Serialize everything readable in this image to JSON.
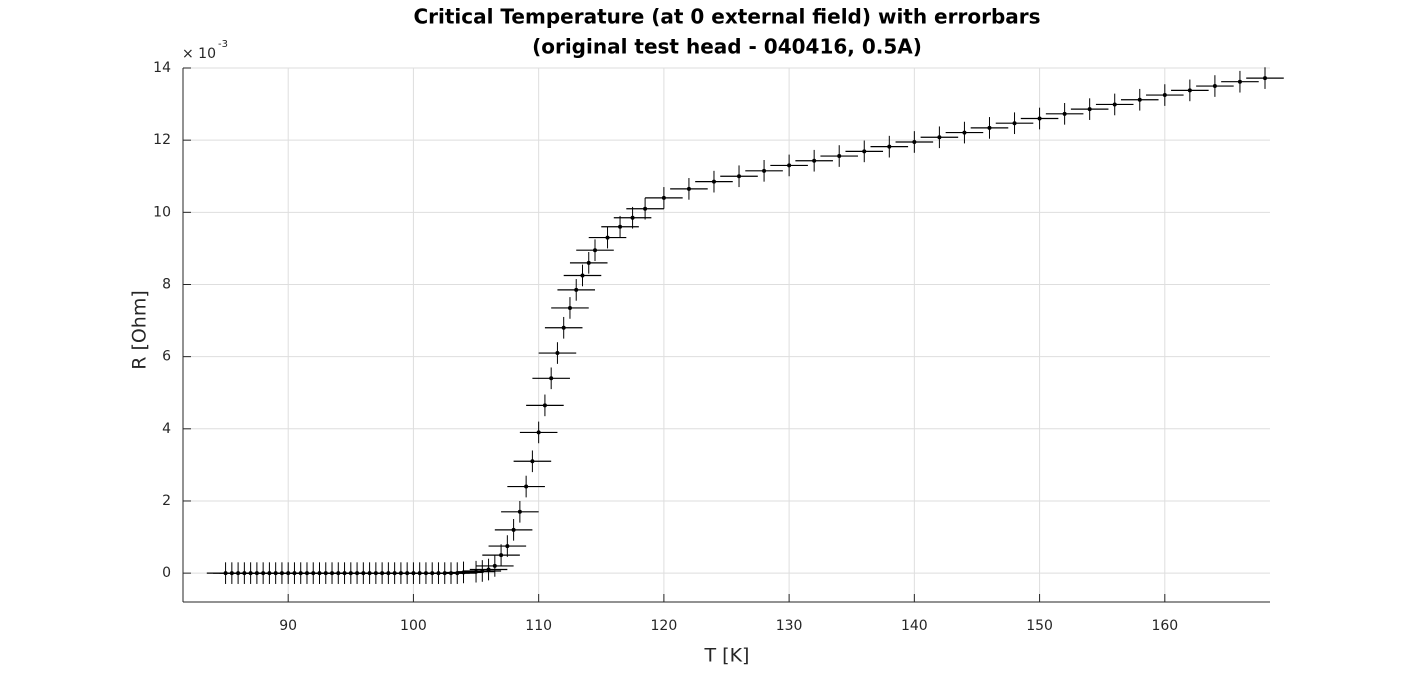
{
  "chart_data": {
    "type": "errorbar-scatter",
    "title": "Critical Temperature (at 0 external field) with errorbars",
    "subtitle": "(original test head - 040416, 0.5A)",
    "x_label": "T [K]",
    "y_label": "R [Ohm]",
    "y_multiplier_base": "× 10",
    "y_multiplier_exponent": "-3",
    "xlim": [
      81.6,
      168.4
    ],
    "ylim": [
      -0.8,
      14
    ],
    "xticks": [
      90,
      100,
      110,
      120,
      130,
      140,
      150,
      160
    ],
    "yticks": [
      0,
      2,
      4,
      6,
      8,
      10,
      12,
      14
    ],
    "grid": true,
    "color": "#000000",
    "xerr": 1.5,
    "yerr": 0.3,
    "series": [
      {
        "x": [
          85,
          85.5,
          86,
          86.5,
          87,
          87.5,
          88,
          88.5,
          89,
          89.5,
          90,
          90.5,
          91,
          91.5,
          92,
          92.5,
          93,
          93.5,
          94,
          94.5,
          95,
          95.5,
          96,
          96.5,
          97,
          97.5,
          98,
          98.5,
          99,
          99.5,
          100,
          100.5,
          101,
          101.5,
          102,
          102.5,
          103,
          103.5,
          104,
          105,
          105.5,
          106,
          106.5,
          107,
          107.5,
          108,
          108.5,
          109,
          109.5,
          110,
          110.5,
          111,
          111.5,
          112,
          112.5,
          113,
          113.5,
          114,
          114.5,
          115.5,
          116.5,
          117.5,
          118.5,
          120,
          122,
          124,
          126,
          128,
          130,
          132,
          134,
          136,
          138,
          140,
          142,
          144,
          146,
          148,
          150,
          152,
          154,
          156,
          158,
          160,
          162,
          164,
          166,
          168
        ],
        "y": [
          0,
          0,
          0,
          0,
          0,
          0,
          0,
          0,
          0,
          0,
          0,
          0,
          0,
          0,
          0,
          0,
          0,
          0,
          0,
          0,
          0,
          0,
          0,
          0,
          0,
          0,
          0,
          0,
          0,
          0,
          0,
          0,
          0,
          0,
          0,
          0,
          0,
          0,
          0.02,
          0.04,
          0.06,
          0.1,
          0.2,
          0.5,
          0.75,
          1.2,
          1.7,
          2.4,
          3.1,
          3.9,
          4.65,
          5.4,
          6.1,
          6.8,
          7.35,
          7.85,
          8.25,
          8.6,
          8.95,
          9.3,
          9.6,
          9.85,
          10.1,
          10.4,
          10.65,
          10.85,
          11.0,
          11.15,
          11.3,
          11.43,
          11.56,
          11.69,
          11.82,
          11.95,
          12.08,
          12.21,
          12.34,
          12.47,
          12.6,
          12.73,
          12.86,
          12.99,
          13.12,
          13.25,
          13.38,
          13.5,
          13.62,
          13.72
        ]
      }
    ]
  }
}
